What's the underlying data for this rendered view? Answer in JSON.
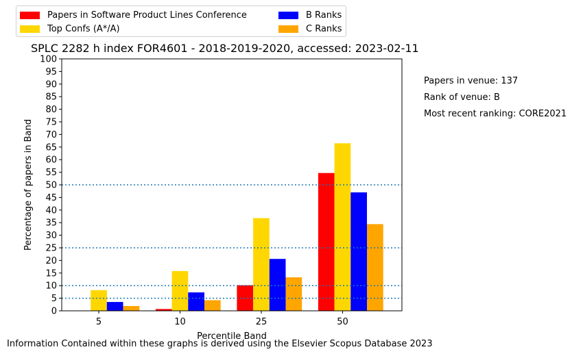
{
  "chart_data": {
    "type": "bar",
    "title": "SPLC 2282 h index FOR4601 - 2018-2019-2020, accessed: 2023-02-11",
    "xlabel": "Percentile Band",
    "ylabel": "Percentage of papers in Band",
    "categories": [
      "5",
      "10",
      "25",
      "50"
    ],
    "ylim": [
      0,
      100
    ],
    "yticks": [
      "0",
      "5",
      "10",
      "15",
      "20",
      "25",
      "30",
      "35",
      "40",
      "45",
      "50",
      "55",
      "60",
      "65",
      "70",
      "75",
      "80",
      "85",
      "90",
      "95",
      "100"
    ],
    "reference_lines": [
      5,
      10,
      25,
      50
    ],
    "grid": false,
    "legend_placement": "top-left, outside",
    "series": [
      {
        "name": "Papers in Software Product Lines Conference",
        "color": "#ff0000",
        "values": [
          0,
          0.7,
          10.2,
          54.7
        ]
      },
      {
        "name": "Top Confs (A*/A)",
        "color": "#ffd700",
        "values": [
          8.2,
          15.8,
          36.8,
          66.5
        ]
      },
      {
        "name": "B Ranks",
        "color": "#0000ff",
        "values": [
          3.5,
          7.3,
          20.6,
          47.0
        ]
      },
      {
        "name": "C Ranks",
        "color": "#ffa500",
        "values": [
          1.9,
          4.2,
          13.3,
          34.4
        ]
      }
    ]
  },
  "notes": {
    "papers_in_venue": "Papers in venue: 137",
    "rank_of_venue": "Rank of venue: B",
    "recent_ranking": "Most recent ranking: CORE2021"
  },
  "footer": "Information Contained within these graphs is derived using the Elsevier Scopus Database 2023",
  "colors": {
    "reference_line": "#1f77b4",
    "axis": "#000000"
  }
}
